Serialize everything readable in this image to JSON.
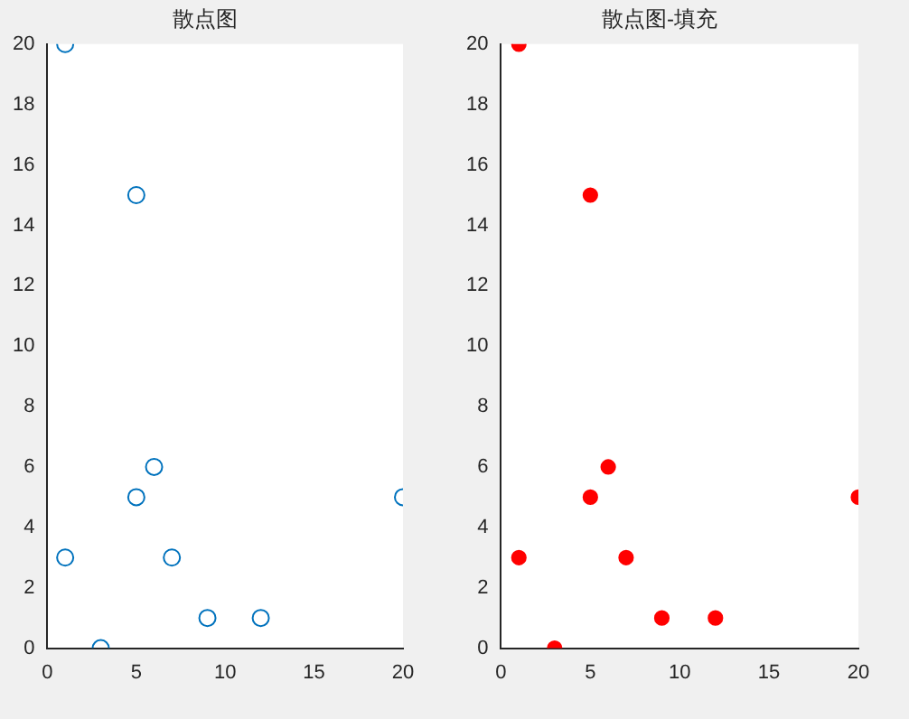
{
  "chart_data": [
    {
      "type": "scatter",
      "title": "散点图",
      "x": [
        1,
        5,
        6,
        5,
        1,
        7,
        9,
        12,
        3,
        20
      ],
      "series": [
        {
          "color": "#0072bd",
          "values": [
            20,
            15,
            6,
            5,
            3,
            3,
            1,
            1,
            0,
            5
          ]
        }
      ],
      "xlim": [
        0,
        20
      ],
      "ylim": [
        0,
        20
      ],
      "xticks": [
        0,
        5,
        10,
        15,
        20
      ],
      "yticks": [
        0,
        2,
        4,
        6,
        8,
        10,
        12,
        14,
        16,
        18,
        20
      ],
      "marker": "circle",
      "grid": false,
      "legend": false
    },
    {
      "type": "scatter",
      "title": "散点图-填充",
      "x": [
        1,
        5,
        6,
        5,
        1,
        7,
        9,
        12,
        3,
        20
      ],
      "series": [
        {
          "color": "#ff0000",
          "values": [
            20,
            15,
            6,
            5,
            3,
            3,
            1,
            1,
            0,
            5
          ]
        }
      ],
      "xlim": [
        0,
        20
      ],
      "ylim": [
        0,
        20
      ],
      "xticks": [
        0,
        5,
        10,
        15,
        20
      ],
      "yticks": [
        0,
        2,
        4,
        6,
        8,
        10,
        12,
        14,
        16,
        18,
        20
      ],
      "marker": "circle",
      "grid": false,
      "legend": false
    }
  ]
}
